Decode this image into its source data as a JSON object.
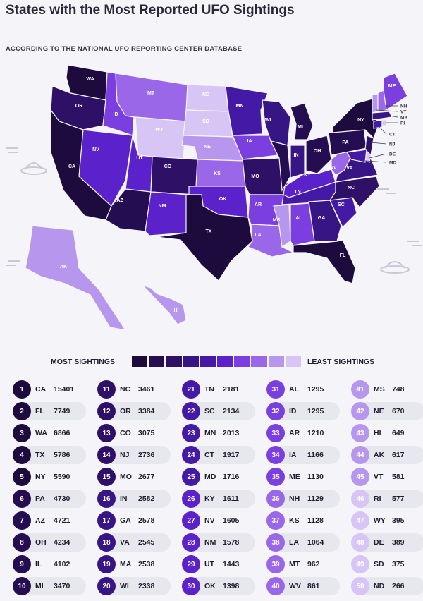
{
  "header": {
    "title": "States with the Most Reported UFO Sightings",
    "subtitle": "ACCORDING TO THE NATIONAL UFO REPORTING CENTER DATABASE"
  },
  "legend": {
    "most_label": "MOST SIGHTINGS",
    "least_label": "LEAST SIGHTINGS",
    "scale_colors": [
      "#1d0b3d",
      "#250d52",
      "#2e1166",
      "#381585",
      "#4419a6",
      "#5b22cc",
      "#7b3fe0",
      "#9a67e8",
      "#b797ee",
      "#d6c5f5"
    ]
  },
  "ranking": [
    {
      "rank": "1",
      "code": "CA",
      "count": "15401"
    },
    {
      "rank": "2",
      "code": "FL",
      "count": "7749"
    },
    {
      "rank": "3",
      "code": "WA",
      "count": "6866"
    },
    {
      "rank": "4",
      "code": "TX",
      "count": "5786"
    },
    {
      "rank": "5",
      "code": "NY",
      "count": "5590"
    },
    {
      "rank": "6",
      "code": "PA",
      "count": "4730"
    },
    {
      "rank": "7",
      "code": "AZ",
      "count": "4721"
    },
    {
      "rank": "8",
      "code": "OH",
      "count": "4234"
    },
    {
      "rank": "9",
      "code": "IL",
      "count": "4102"
    },
    {
      "rank": "10",
      "code": "MI",
      "count": "3470"
    },
    {
      "rank": "11",
      "code": "NC",
      "count": "3461"
    },
    {
      "rank": "12",
      "code": "OR",
      "count": "3384"
    },
    {
      "rank": "13",
      "code": "CO",
      "count": "3075"
    },
    {
      "rank": "14",
      "code": "NJ",
      "count": "2736"
    },
    {
      "rank": "15",
      "code": "MO",
      "count": "2677"
    },
    {
      "rank": "16",
      "code": "IN",
      "count": "2582"
    },
    {
      "rank": "17",
      "code": "GA",
      "count": "2578"
    },
    {
      "rank": "18",
      "code": "VA",
      "count": "2545"
    },
    {
      "rank": "19",
      "code": "MA",
      "count": "2538"
    },
    {
      "rank": "20",
      "code": "WI",
      "count": "2338"
    },
    {
      "rank": "21",
      "code": "TN",
      "count": "2181"
    },
    {
      "rank": "22",
      "code": "SC",
      "count": "2134"
    },
    {
      "rank": "23",
      "code": "MN",
      "count": "2013"
    },
    {
      "rank": "24",
      "code": "CT",
      "count": "1917"
    },
    {
      "rank": "25",
      "code": "MD",
      "count": "1716"
    },
    {
      "rank": "26",
      "code": "KY",
      "count": "1611"
    },
    {
      "rank": "27",
      "code": "NV",
      "count": "1605"
    },
    {
      "rank": "28",
      "code": "NM",
      "count": "1578"
    },
    {
      "rank": "29",
      "code": "UT",
      "count": "1443"
    },
    {
      "rank": "30",
      "code": "OK",
      "count": "1398"
    },
    {
      "rank": "31",
      "code": "AL",
      "count": "1295"
    },
    {
      "rank": "32",
      "code": "ID",
      "count": "1295"
    },
    {
      "rank": "33",
      "code": "AR",
      "count": "1210"
    },
    {
      "rank": "34",
      "code": "IA",
      "count": "1166"
    },
    {
      "rank": "35",
      "code": "ME",
      "count": "1130"
    },
    {
      "rank": "36",
      "code": "NH",
      "count": "1129"
    },
    {
      "rank": "37",
      "code": "KS",
      "count": "1128"
    },
    {
      "rank": "38",
      "code": "LA",
      "count": "1064"
    },
    {
      "rank": "39",
      "code": "MT",
      "count": "962"
    },
    {
      "rank": "40",
      "code": "WV",
      "count": "861"
    },
    {
      "rank": "41",
      "code": "MS",
      "count": "748"
    },
    {
      "rank": "42",
      "code": "NE",
      "count": "670"
    },
    {
      "rank": "43",
      "code": "HI",
      "count": "649"
    },
    {
      "rank": "44",
      "code": "AK",
      "count": "617"
    },
    {
      "rank": "45",
      "code": "VT",
      "count": "581"
    },
    {
      "rank": "46",
      "code": "RI",
      "count": "577"
    },
    {
      "rank": "47",
      "code": "WY",
      "count": "395"
    },
    {
      "rank": "48",
      "code": "DE",
      "count": "389"
    },
    {
      "rank": "49",
      "code": "SD",
      "count": "375"
    },
    {
      "rank": "50",
      "code": "ND",
      "count": "266"
    }
  ],
  "map": {
    "decorations": [
      "ufo-icon",
      "ufo-icon",
      "ufo-icon",
      "ufo-icon"
    ]
  }
}
